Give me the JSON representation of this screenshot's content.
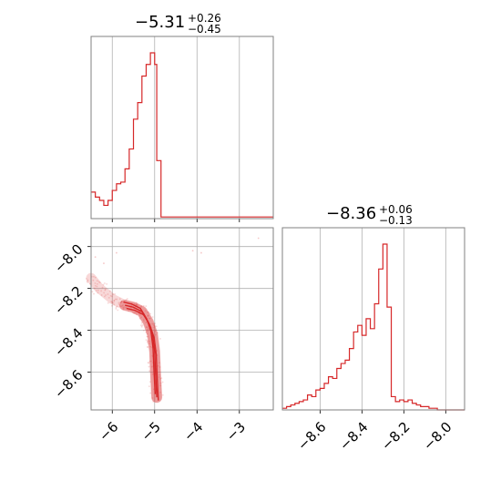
{
  "colors": {
    "series": "#d62728",
    "grid": "#b0b0b0",
    "frame": "#808080"
  },
  "chart_data": [
    {
      "type": "histogram",
      "panel": "top-left",
      "title": {
        "median": "−5.31",
        "upper": "+0.26",
        "lower": "−0.45"
      },
      "xlim": [
        -6.5,
        -2.2
      ],
      "xticks": [
        -6,
        -5,
        -4,
        -3
      ],
      "grid": true,
      "bins": [
        [
          -6.5,
          0.16
        ],
        [
          -6.4,
          0.13
        ],
        [
          -6.3,
          0.11
        ],
        [
          -6.2,
          0.08
        ],
        [
          -6.1,
          0.11
        ],
        [
          -6.0,
          0.17
        ],
        [
          -5.9,
          0.21
        ],
        [
          -5.8,
          0.22
        ],
        [
          -5.7,
          0.3
        ],
        [
          -5.6,
          0.42
        ],
        [
          -5.5,
          0.6
        ],
        [
          -5.4,
          0.7
        ],
        [
          -5.3,
          0.86
        ],
        [
          -5.2,
          0.93
        ],
        [
          -5.1,
          1.0
        ],
        [
          -5.0,
          0.93
        ],
        [
          -4.95,
          0.35
        ],
        [
          -4.85,
          0.01
        ],
        [
          -4.7,
          0.01
        ],
        [
          -4.4,
          0.01
        ],
        [
          -4.0,
          0.01
        ],
        [
          -3.4,
          0.01
        ],
        [
          -2.8,
          0.01
        ],
        [
          -2.3,
          0.01
        ]
      ]
    },
    {
      "type": "contour",
      "panel": "bottom-left",
      "xlim": [
        -6.5,
        -2.2
      ],
      "ylim": [
        -8.78,
        -7.91
      ],
      "xticks": [
        -6,
        -5,
        -4,
        -3
      ],
      "yticks": [
        -8.0,
        -8.2,
        -8.4,
        -8.6
      ],
      "xtick_labels": [
        "−6",
        "−5",
        "−4",
        "−3"
      ],
      "ytick_labels": [
        "−8.0",
        "−8.2",
        "−8.4",
        "−8.6"
      ],
      "grid": true,
      "ridge": [
        [
          -6.5,
          -8.15
        ],
        [
          -6.3,
          -8.2
        ],
        [
          -6.0,
          -8.25
        ],
        [
          -5.7,
          -8.28
        ],
        [
          -5.5,
          -8.29
        ],
        [
          -5.3,
          -8.31
        ],
        [
          -5.15,
          -8.36
        ],
        [
          -5.05,
          -8.42
        ],
        [
          -5.0,
          -8.5
        ],
        [
          -4.98,
          -8.6
        ],
        [
          -4.95,
          -8.72
        ]
      ]
    },
    {
      "type": "histogram",
      "panel": "bottom-right",
      "title": {
        "median": "−8.36",
        "upper": "+0.06",
        "lower": "−0.13"
      },
      "xlim": [
        -8.78,
        -7.91
      ],
      "xticks": [
        -8.6,
        -8.4,
        -8.2,
        -8.0
      ],
      "xtick_labels": [
        "−8.6",
        "−8.4",
        "−8.2",
        "−8.0"
      ],
      "grid": true,
      "bins": [
        [
          -8.78,
          0.01
        ],
        [
          -8.76,
          0.02
        ],
        [
          -8.74,
          0.03
        ],
        [
          -8.72,
          0.04
        ],
        [
          -8.7,
          0.05
        ],
        [
          -8.68,
          0.06
        ],
        [
          -8.66,
          0.09
        ],
        [
          -8.64,
          0.08
        ],
        [
          -8.62,
          0.12
        ],
        [
          -8.6,
          0.13
        ],
        [
          -8.58,
          0.16
        ],
        [
          -8.56,
          0.2
        ],
        [
          -8.54,
          0.19
        ],
        [
          -8.52,
          0.25
        ],
        [
          -8.5,
          0.28
        ],
        [
          -8.48,
          0.3
        ],
        [
          -8.46,
          0.37
        ],
        [
          -8.44,
          0.47
        ],
        [
          -8.42,
          0.51
        ],
        [
          -8.4,
          0.45
        ],
        [
          -8.38,
          0.55
        ],
        [
          -8.36,
          0.49
        ],
        [
          -8.34,
          0.64
        ],
        [
          -8.32,
          0.85
        ],
        [
          -8.3,
          1.0
        ],
        [
          -8.28,
          0.62
        ],
        [
          -8.26,
          0.08
        ],
        [
          -8.24,
          0.05
        ],
        [
          -8.22,
          0.06
        ],
        [
          -8.2,
          0.05
        ],
        [
          -8.18,
          0.06
        ],
        [
          -8.16,
          0.04
        ],
        [
          -8.14,
          0.03
        ],
        [
          -8.12,
          0.02
        ],
        [
          -8.1,
          0.02
        ],
        [
          -8.08,
          0.01
        ],
        [
          -8.06,
          0.01
        ],
        [
          -8.04,
          0.0
        ],
        [
          -8.0,
          0.0
        ]
      ]
    }
  ]
}
